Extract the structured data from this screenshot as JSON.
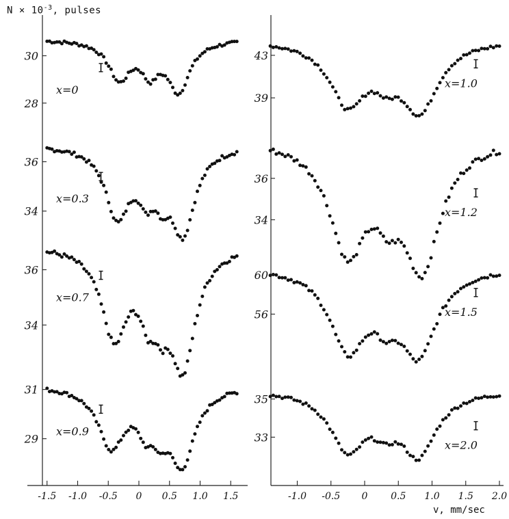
{
  "figure": {
    "ylabel": "N × 10",
    "ylabel_exp": "-3",
    "ylabel_unit": ", pulses",
    "xlabel": "v, mm/sec"
  },
  "chart_data": [
    {
      "type": "scatter",
      "label": "x=0",
      "xlim": [
        -1.5,
        1.6
      ],
      "ylim": [
        27.3,
        31.2
      ],
      "yticks": [
        {
          "v": 30,
          "label": "30"
        },
        {
          "v": 28,
          "label": "28"
        }
      ],
      "dips": [
        {
          "c": -0.32,
          "d": 1.6,
          "w": 0.22
        },
        {
          "c": 0.18,
          "d": 1.2,
          "w": 0.17
        },
        {
          "c": 0.65,
          "d": 2.1,
          "w": 0.22
        }
      ],
      "base": 30.7,
      "errorbar": {
        "v": -0.62,
        "y": 29.5
      }
    },
    {
      "type": "scatter",
      "label": "x=0.3",
      "xlim": [
        -1.5,
        1.6
      ],
      "ylim": [
        32.8,
        37.4
      ],
      "yticks": [
        {
          "v": 36,
          "label": "36"
        },
        {
          "v": 34,
          "label": "34"
        }
      ],
      "dips": [
        {
          "c": -0.35,
          "d": 2.8,
          "w": 0.24
        },
        {
          "c": 0.12,
          "d": 1.5,
          "w": 0.16
        },
        {
          "c": 0.38,
          "d": 1.2,
          "w": 0.14
        },
        {
          "c": 0.72,
          "d": 3.4,
          "w": 0.24
        }
      ],
      "base": 36.7,
      "errorbar": {
        "v": -0.62,
        "y": 35.4
      }
    },
    {
      "type": "scatter",
      "label": "x=0.7",
      "xlim": [
        -1.5,
        1.6
      ],
      "ylim": [
        32.2,
        37.2
      ],
      "yticks": [
        {
          "v": 36,
          "label": "36"
        },
        {
          "v": 34,
          "label": "34"
        }
      ],
      "dips": [
        {
          "c": -0.4,
          "d": 3.2,
          "w": 0.26
        },
        {
          "c": 0.15,
          "d": 1.8,
          "w": 0.17
        },
        {
          "c": 0.38,
          "d": 1.4,
          "w": 0.15
        },
        {
          "c": 0.72,
          "d": 4.2,
          "w": 0.25
        }
      ],
      "base": 36.9,
      "errorbar": {
        "v": -0.62,
        "y": 35.8
      }
    },
    {
      "type": "scatter",
      "label": "x=0.9",
      "xlim": [
        -1.5,
        1.6
      ],
      "ylim": [
        27.6,
        31.6
      ],
      "yticks": [
        {
          "v": 31,
          "label": "31"
        },
        {
          "v": 29,
          "label": "29"
        }
      ],
      "dips": [
        {
          "c": -0.45,
          "d": 2.4,
          "w": 0.27
        },
        {
          "c": 0.12,
          "d": 1.3,
          "w": 0.17
        },
        {
          "c": 0.35,
          "d": 1.0,
          "w": 0.14
        },
        {
          "c": 0.7,
          "d": 3.1,
          "w": 0.26
        }
      ],
      "base": 31.2,
      "errorbar": {
        "v": -0.62,
        "y": 30.2
      }
    },
    {
      "type": "scatter",
      "label": "x=1.0",
      "xlim": [
        -1.4,
        2.0
      ],
      "ylim": [
        36.5,
        45.5
      ],
      "yticks": [
        {
          "v": 43,
          "label": "43"
        },
        {
          "v": 39,
          "label": "39"
        }
      ],
      "dips": [
        {
          "c": -0.25,
          "d": 5.8,
          "w": 0.33
        },
        {
          "c": 0.32,
          "d": 2.2,
          "w": 0.22
        },
        {
          "c": 0.82,
          "d": 6.3,
          "w": 0.33
        }
      ],
      "base": 44.5,
      "errorbar": {
        "v": 1.65,
        "y": 42.2
      }
    },
    {
      "type": "scatter",
      "label": "x=1.2",
      "xlim": [
        -1.4,
        2.0
      ],
      "ylim": [
        31.8,
        38.8
      ],
      "yticks": [
        {
          "v": 36,
          "label": "36"
        },
        {
          "v": 34,
          "label": "34"
        }
      ],
      "dips": [
        {
          "c": -0.25,
          "d": 5.2,
          "w": 0.33
        },
        {
          "c": 0.34,
          "d": 2.0,
          "w": 0.22
        },
        {
          "c": 0.85,
          "d": 5.9,
          "w": 0.33
        }
      ],
      "base": 37.9,
      "errorbar": {
        "v": 1.65,
        "y": 35.3
      }
    },
    {
      "type": "scatter",
      "label": "x=1.5",
      "xlim": [
        -1.4,
        2.0
      ],
      "ylim": [
        51.5,
        62.5
      ],
      "yticks": [
        {
          "v": 60,
          "label": "60"
        },
        {
          "v": 56,
          "label": "56"
        }
      ],
      "dips": [
        {
          "c": -0.25,
          "d": 8.0,
          "w": 0.33
        },
        {
          "c": 0.32,
          "d": 3.1,
          "w": 0.22
        },
        {
          "c": 0.8,
          "d": 8.4,
          "w": 0.33
        }
      ],
      "base": 60.9,
      "errorbar": {
        "v": 1.65,
        "y": 58.2
      }
    },
    {
      "type": "scatter",
      "label": "x=2.0",
      "xlim": [
        -1.4,
        2.0
      ],
      "ylim": [
        31.4,
        36.2
      ],
      "yticks": [
        {
          "v": 35,
          "label": "35"
        },
        {
          "v": 33,
          "label": "33"
        }
      ],
      "dips": [
        {
          "c": -0.25,
          "d": 3.0,
          "w": 0.32
        },
        {
          "c": 0.3,
          "d": 1.2,
          "w": 0.22
        },
        {
          "c": 0.8,
          "d": 3.2,
          "w": 0.32
        }
      ],
      "base": 35.5,
      "errorbar": {
        "v": 1.65,
        "y": 33.6
      }
    }
  ],
  "axes": {
    "left": {
      "ticks": [
        {
          "v": -1.5,
          "label": "-1.5"
        },
        {
          "v": -1.0,
          "label": "-1.0"
        },
        {
          "v": -0.5,
          "label": "-0.5"
        },
        {
          "v": 0,
          "label": "0"
        },
        {
          "v": 0.5,
          "label": "0.5"
        },
        {
          "v": 1.0,
          "label": "1.0"
        },
        {
          "v": 1.5,
          "label": "1.5"
        }
      ]
    },
    "right": {
      "ticks": [
        {
          "v": -1.0,
          "label": "-1.0"
        },
        {
          "v": -0.5,
          "label": "-0.5"
        },
        {
          "v": 0,
          "label": "0"
        },
        {
          "v": 0.5,
          "label": "0.5"
        },
        {
          "v": 1.0,
          "label": "1.0"
        },
        {
          "v": 1.5,
          "label": "1.5"
        },
        {
          "v": 2.0,
          "label": "2.0"
        }
      ]
    }
  },
  "style": {
    "marker_color": "#111111",
    "axis_color": "#222222"
  }
}
